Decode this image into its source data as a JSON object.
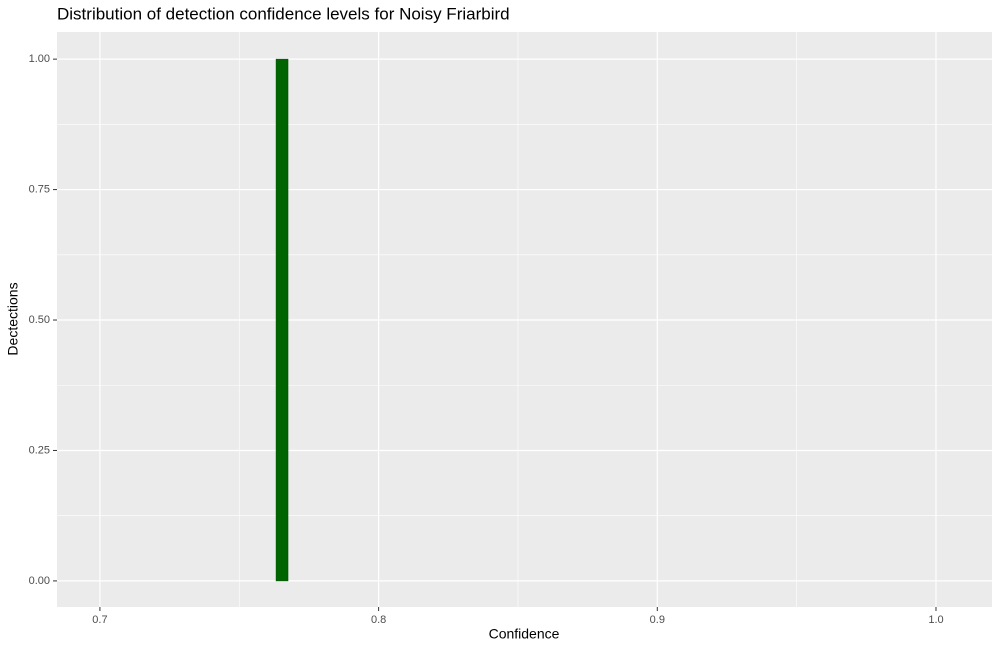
{
  "chart_data": {
    "type": "histogram",
    "title": "Distribution of detection confidence levels for Noisy Friarbird",
    "x_label": "Confidence",
    "y_label": "Dectections",
    "bins": [
      0.7632,
      0.7675
    ],
    "counts": [
      1
    ],
    "color": "#006400",
    "xlim": [
      0.6846,
      1.0201
    ],
    "ylim": [
      -0.05,
      1.052
    ],
    "xticks": [
      0.7,
      0.8,
      0.9,
      {
        "value": 1.0,
        "label": "1.0"
      }
    ],
    "yticks": [
      {
        "value": 0,
        "label": "0.00"
      },
      {
        "value": 0.25,
        "label": "0.25"
      },
      {
        "value": 0.5,
        "label": "0.50"
      },
      {
        "value": 0.75,
        "label": "0.75"
      },
      {
        "value": 1,
        "label": "1.00"
      }
    ],
    "xminor": [
      0.75,
      0.85,
      0.95
    ],
    "yminor": [
      0.125,
      0.375,
      0.625,
      0.875
    ],
    "grid": true
  }
}
